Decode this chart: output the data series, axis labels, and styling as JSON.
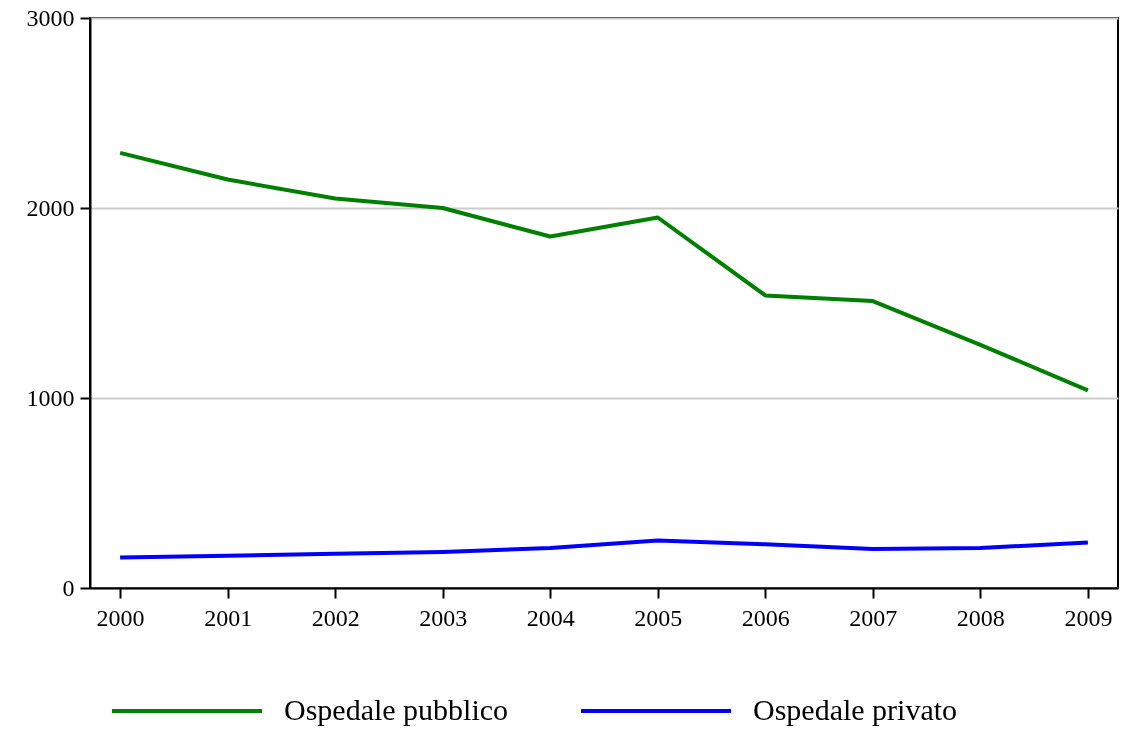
{
  "chart_data": {
    "type": "line",
    "categories": [
      "2000",
      "2001",
      "2002",
      "2003",
      "2004",
      "2005",
      "2006",
      "2007",
      "2008",
      "2009"
    ],
    "series": [
      {
        "name": "Ospedale pubblico",
        "color": "#008000",
        "values": [
          2290,
          2150,
          2050,
          2000,
          1850,
          1950,
          1540,
          1510,
          1280,
          1040
        ]
      },
      {
        "name": "Ospedale privato",
        "color": "#0000ff",
        "values": [
          160,
          170,
          180,
          190,
          210,
          250,
          230,
          205,
          210,
          240
        ]
      }
    ],
    "ylim": [
      0,
      3000
    ],
    "yticks": [
      0,
      1000,
      2000,
      3000
    ],
    "grid": "y",
    "legend": "bottom",
    "marker": "none",
    "line_style": "solid"
  }
}
